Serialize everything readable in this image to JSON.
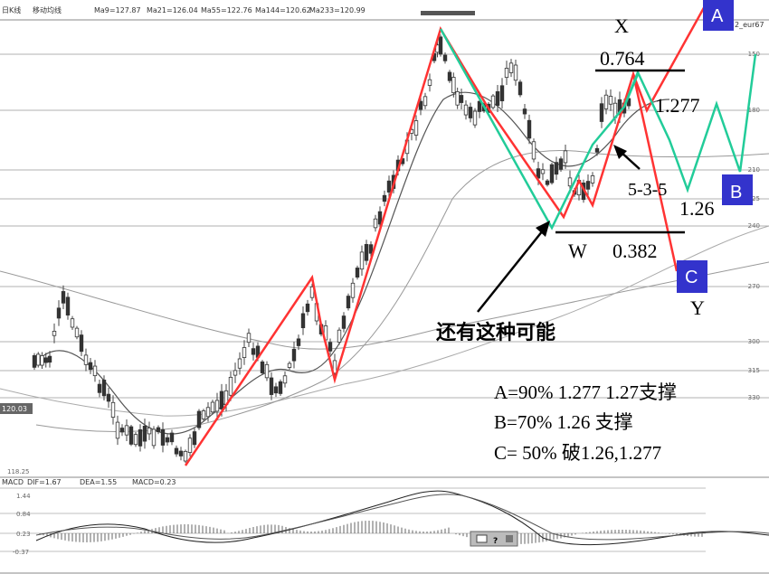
{
  "header": {
    "period": "日K线",
    "indicator": "移动均线",
    "ma9": "Ma9=127.87",
    "ma21": "Ma21=126.04",
    "ma55": "Ma55=122.76",
    "ma144": "Ma144=120.62",
    "ma233": "Ma233=120.99",
    "symbol": "2_eur67"
  },
  "price_axis": {
    "labels": [
      "150",
      "180",
      "210",
      "225",
      "240",
      "270",
      "300",
      "315",
      "330"
    ],
    "current_price": "120.03",
    "low_price": "118.25"
  },
  "macd": {
    "title": "MACD",
    "dif": "DIF=1.67",
    "dea": "DEA=1.55",
    "macd": "MACD=0.23",
    "axis_labels": [
      "1.44",
      "0.84",
      "0.23",
      "-0.37"
    ]
  },
  "annotations": {
    "X": "X",
    "Y": "Y",
    "W": "W",
    "A": "A",
    "B": "B",
    "C": "C",
    "fib_0764": "0.764",
    "fib_1277": "1.277",
    "fib_126": "1.26",
    "fib_0382": "0.382",
    "wave_535": "5-3-5",
    "possibility_note": "还有这种可能",
    "scenario_a": "A=90% 1.277 1.27支撑",
    "scenario_b": "B=70%  1.26 支撑",
    "scenario_c": "C= 50% 破1.26,1.277"
  },
  "colors": {
    "red_path": "#ff3333",
    "green_path": "#22cc99",
    "box_blue": "#3333cc",
    "candle": "#333333"
  },
  "chart_data": {
    "type": "candlestick",
    "title": "",
    "price_range": [
      118.25,
      133.5
    ],
    "moving_averages": [
      {
        "name": "Ma9",
        "value": 127.87
      },
      {
        "name": "Ma21",
        "value": 126.04
      },
      {
        "name": "Ma55",
        "value": 122.76
      },
      {
        "name": "Ma144",
        "value": 120.62
      },
      {
        "name": "Ma233",
        "value": 120.99
      }
    ],
    "current_price": 120.03,
    "low_price": 118.25,
    "macd": {
      "dif": 1.67,
      "dea": 1.55,
      "macd": 0.23,
      "axis": [
        1.44,
        0.84,
        0.23,
        -0.37
      ]
    }
  }
}
